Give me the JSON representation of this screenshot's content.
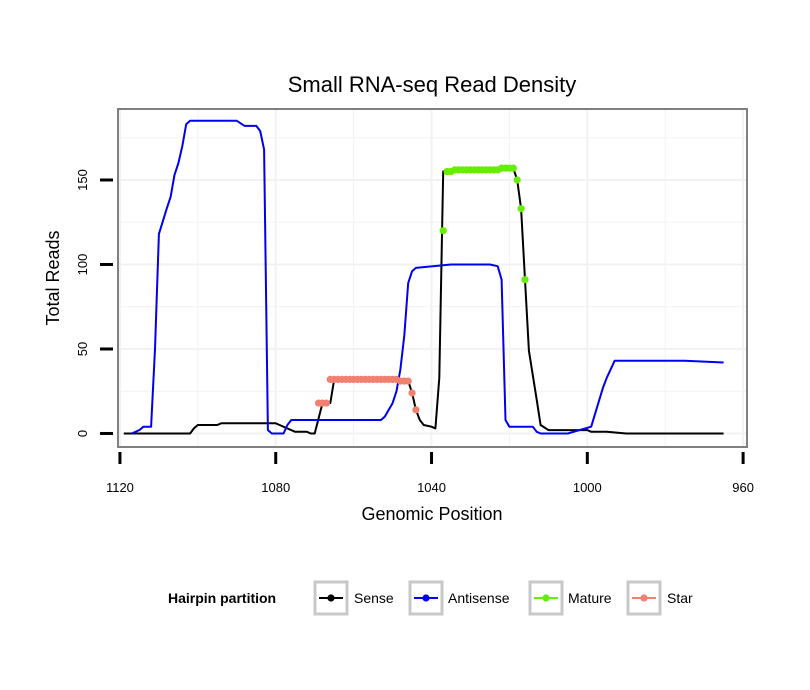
{
  "chart_data": {
    "type": "line",
    "title": "Small RNA-seq Read Density",
    "xlabel": "Genomic Position",
    "ylabel": "Total Reads",
    "xlim": [
      1120.5,
      959
    ],
    "ylim": [
      -8,
      192
    ],
    "x_reversed": true,
    "xticks": [
      1120,
      1080,
      1040,
      1000,
      960
    ],
    "yticks": [
      0,
      50,
      100,
      150
    ],
    "grid": true,
    "legend": {
      "title": "Hairpin partition",
      "position": "bottom",
      "entries": [
        "Sense",
        "Antisense",
        "Mature",
        "Star"
      ]
    },
    "colors": {
      "Sense": "#000000",
      "Antisense": "#0000ee",
      "Mature": "#66ee00",
      "Star": "#f08070",
      "panel_border": "#808080",
      "grid": "#f2f2f2"
    },
    "series": [
      {
        "name": "Sense",
        "x": [
          1119,
          1102,
          1101,
          1100,
          1095,
          1094,
          1080,
          1079,
          1077,
          1075,
          1072,
          1071,
          1070,
          1068,
          1067,
          1066,
          1065,
          1064,
          1063,
          1060,
          1055,
          1053,
          1051,
          1050,
          1049,
          1048,
          1047,
          1046,
          1045,
          1044,
          1043,
          1042,
          1040,
          1039,
          1038,
          1037,
          1035,
          1030,
          1028,
          1025,
          1021,
          1020,
          1019,
          1018,
          1017,
          1016,
          1015,
          1013,
          1012,
          1010,
          1005,
          1000,
          999,
          995,
          990,
          965
        ],
        "y": [
          0,
          0,
          3,
          5,
          5,
          6,
          6,
          5,
          3,
          1,
          1,
          0,
          0,
          18,
          18,
          18,
          32,
          32,
          32,
          32,
          32,
          32,
          32,
          32,
          32,
          31,
          31,
          31,
          24,
          14,
          8,
          5,
          4,
          3,
          33,
          155,
          156,
          156,
          156,
          156,
          158,
          158,
          157,
          150,
          133,
          91,
          49,
          20,
          5,
          2,
          2,
          2,
          1,
          1,
          0,
          0
        ]
      },
      {
        "name": "Antisense",
        "x": [
          1117,
          1115,
          1114,
          1112,
          1111,
          1110,
          1108,
          1107,
          1106,
          1105,
          1104,
          1103,
          1102,
          1100,
          1090,
          1088,
          1085,
          1084,
          1083,
          1082,
          1081,
          1080,
          1079,
          1078,
          1077,
          1076,
          1055,
          1053,
          1052,
          1050,
          1049,
          1048,
          1047,
          1046,
          1045,
          1044,
          1035,
          1034,
          1033,
          1032,
          1030,
          1025,
          1023,
          1022,
          1021,
          1020,
          1018,
          1015,
          1014,
          1013,
          1012,
          1011,
          1010,
          1009,
          1008,
          1005,
          999,
          996,
          995,
          994,
          993,
          990,
          989,
          985,
          980,
          975,
          965
        ],
        "y": [
          0,
          2,
          4,
          4,
          50,
          118,
          133,
          140,
          153,
          160,
          170,
          183,
          185,
          185,
          185,
          182,
          182,
          179,
          168,
          2,
          0,
          0,
          0,
          0,
          5,
          8,
          8,
          8,
          10,
          18,
          25,
          38,
          58,
          89,
          96,
          98,
          100,
          100,
          100,
          100,
          100,
          100,
          99,
          91,
          8,
          4,
          4,
          4,
          4,
          1,
          0,
          0,
          0,
          0,
          0,
          0,
          4,
          27,
          33,
          38,
          43,
          43,
          43,
          43,
          43,
          43,
          42
        ]
      },
      {
        "name": "Mature",
        "x": [
          1037,
          1036,
          1035,
          1034,
          1033,
          1032,
          1031,
          1030,
          1029,
          1028,
          1027,
          1026,
          1025,
          1024,
          1023,
          1022,
          1021,
          1020,
          1019,
          1018,
          1017,
          1016
        ],
        "y": [
          120,
          155,
          155,
          156,
          156,
          156,
          156,
          156,
          156,
          156,
          156,
          156,
          156,
          156,
          156,
          157,
          157,
          157,
          157,
          150,
          133,
          91
        ]
      },
      {
        "name": "Star",
        "x": [
          1069,
          1068,
          1067,
          1066,
          1065,
          1064,
          1063,
          1062,
          1061,
          1060,
          1059,
          1058,
          1057,
          1056,
          1055,
          1054,
          1053,
          1052,
          1051,
          1050,
          1049,
          1048,
          1047,
          1046,
          1045,
          1044
        ],
        "y": [
          18,
          18,
          18,
          32,
          32,
          32,
          32,
          32,
          32,
          32,
          32,
          32,
          32,
          32,
          32,
          32,
          32,
          32,
          32,
          32,
          32,
          31,
          31,
          31,
          24,
          14
        ]
      }
    ]
  }
}
